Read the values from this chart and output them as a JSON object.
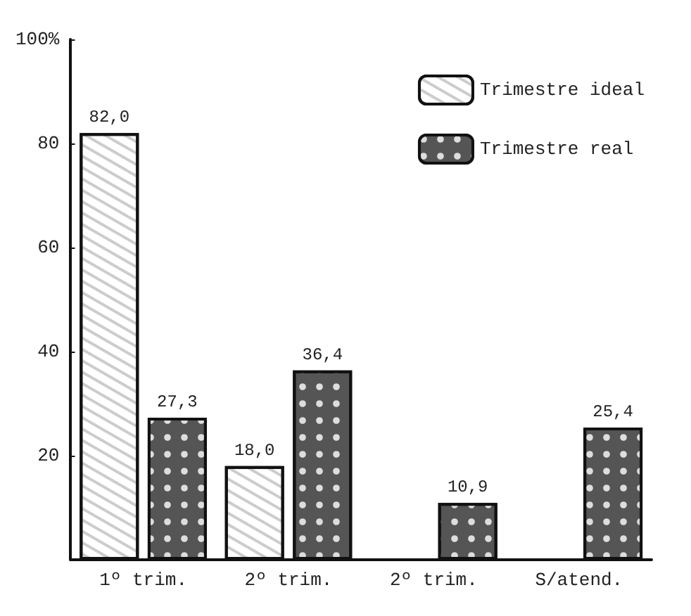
{
  "chart_data": {
    "type": "bar",
    "categories": [
      "1º trim.",
      "2º trim.",
      "2º trim.",
      "S/atend."
    ],
    "series": [
      {
        "name": "Trimestre ideal",
        "color": "#ffffff",
        "values": [
          82.0,
          18.0,
          null,
          null
        ],
        "value_labels": [
          "82,0",
          "18,0",
          null,
          null
        ]
      },
      {
        "name": "Trimestre real",
        "color": "#555555",
        "values": [
          27.3,
          36.4,
          10.9,
          25.4
        ],
        "value_labels": [
          "27,3",
          "36,4",
          "10,9",
          "25,4"
        ]
      }
    ],
    "ylim": [
      0,
      100
    ],
    "yticks": [
      20,
      40,
      60,
      80,
      {
        "value": 100,
        "label": "100%"
      }
    ],
    "grid": false,
    "legend": "top right"
  }
}
